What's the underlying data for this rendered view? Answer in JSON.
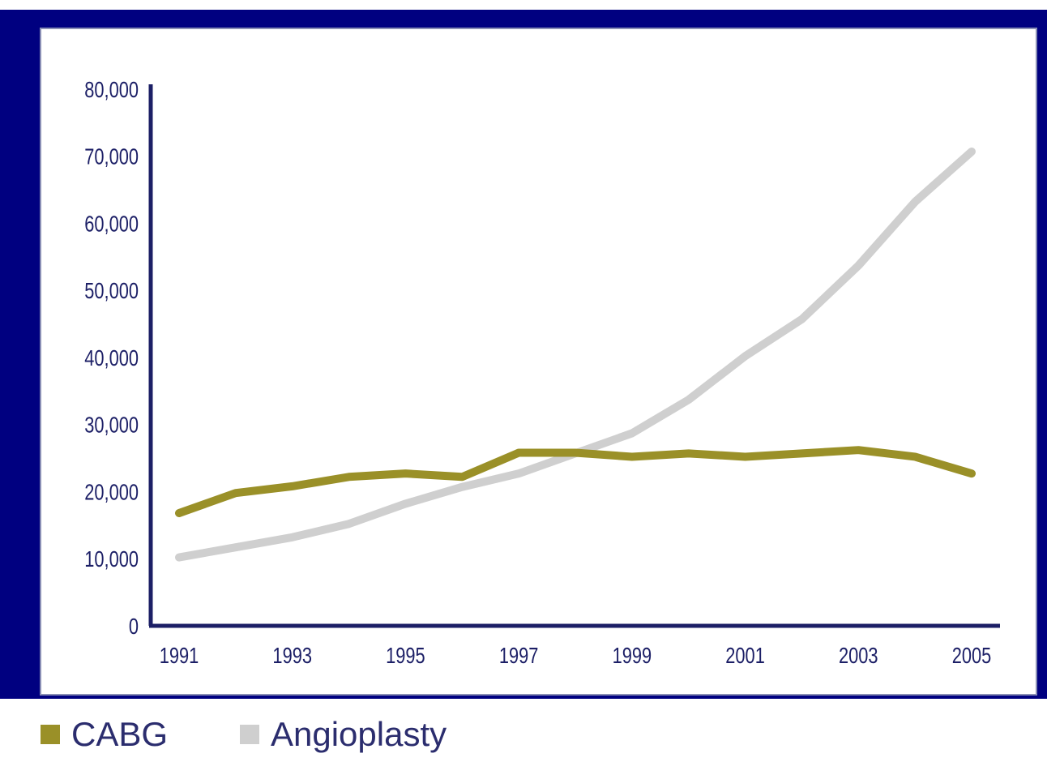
{
  "colors": {
    "background": "#000080",
    "axis": "#1c1f66",
    "text": "#1c1f66"
  },
  "chart_data": {
    "type": "line",
    "x": [
      1991,
      1992,
      1993,
      1994,
      1995,
      1996,
      1997,
      1998,
      1999,
      2000,
      2001,
      2002,
      2003,
      2004,
      2005
    ],
    "xtick_labels": [
      "1991",
      "1993",
      "1995",
      "1997",
      "1999",
      "2001",
      "2003",
      "2005"
    ],
    "ytick_labels": [
      "0",
      "10,000",
      "20,000",
      "30,000",
      "40,000",
      "50,000",
      "60,000",
      "70,000",
      "80,000"
    ],
    "ylim": [
      0,
      80000
    ],
    "xlim": [
      1991,
      2005
    ],
    "grid": false,
    "legend_position": "bottom-left",
    "series": [
      {
        "name": "CABG",
        "color": "#9a9028",
        "values": [
          16800,
          19800,
          20800,
          22200,
          22700,
          22200,
          25800,
          25800,
          25200,
          25700,
          25200,
          25700,
          26200,
          25200,
          22700
        ]
      },
      {
        "name": "Angioplasty",
        "color": "#cfcfcf",
        "values": [
          10200,
          11700,
          13200,
          15200,
          18200,
          20700,
          22700,
          25700,
          28700,
          33700,
          40200,
          45700,
          53700,
          63200,
          70700
        ]
      }
    ]
  }
}
